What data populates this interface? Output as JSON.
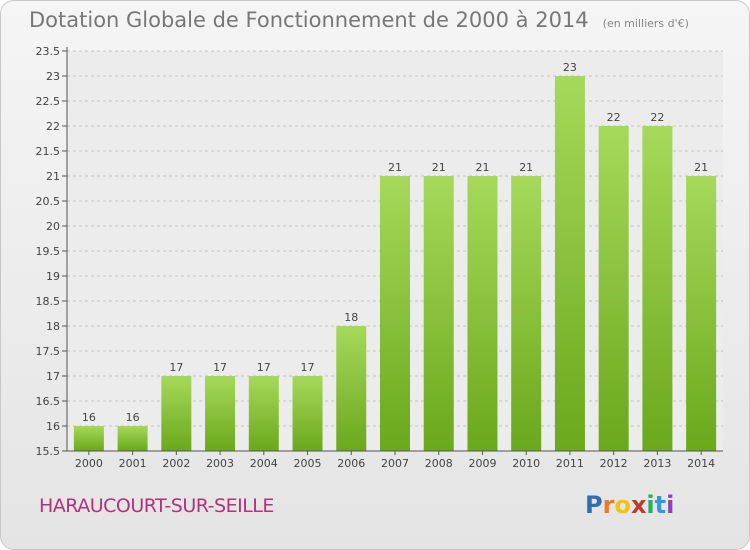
{
  "title": "Dotation Globale de Fonctionnement de 2000 à 2014",
  "subtitle": "(en milliers d'€)",
  "commune": "HARAUCOURT-SUR-SEILLE",
  "logo": {
    "text": "Proxiti",
    "letters": [
      {
        "ch": "P",
        "color": "#2f6db5"
      },
      {
        "ch": "r",
        "color": "#e67e22"
      },
      {
        "ch": "o",
        "color": "#f1c40f"
      },
      {
        "ch": "x",
        "color": "#c0392b"
      },
      {
        "ch": "i",
        "color": "#27ae60"
      },
      {
        "ch": "t",
        "color": "#3498db"
      },
      {
        "ch": "i",
        "color": "#8e44ad"
      }
    ]
  },
  "colors": {
    "bar_light": "#a6d95a",
    "bar_dark": "#6aa81c",
    "grid": "#c4c4c4",
    "axis": "#555555"
  },
  "chart_data": {
    "type": "bar",
    "categories": [
      "2000",
      "2001",
      "2002",
      "2003",
      "2004",
      "2005",
      "2006",
      "2007",
      "2008",
      "2009",
      "2010",
      "2011",
      "2012",
      "2013",
      "2014"
    ],
    "values": [
      16,
      16,
      17,
      17,
      17,
      17,
      18,
      21,
      21,
      21,
      21,
      23,
      22,
      22,
      21
    ],
    "ylim": [
      15.5,
      23.5
    ],
    "yticks": [
      "15.5",
      "16",
      "16.5",
      "17",
      "17.5",
      "18",
      "18.5",
      "19",
      "19.5",
      "20",
      "20.5",
      "21",
      "21.5",
      "22",
      "22.5",
      "23",
      "23.5"
    ],
    "grid": true,
    "legend": "none",
    "xlabel": "",
    "ylabel": ""
  }
}
